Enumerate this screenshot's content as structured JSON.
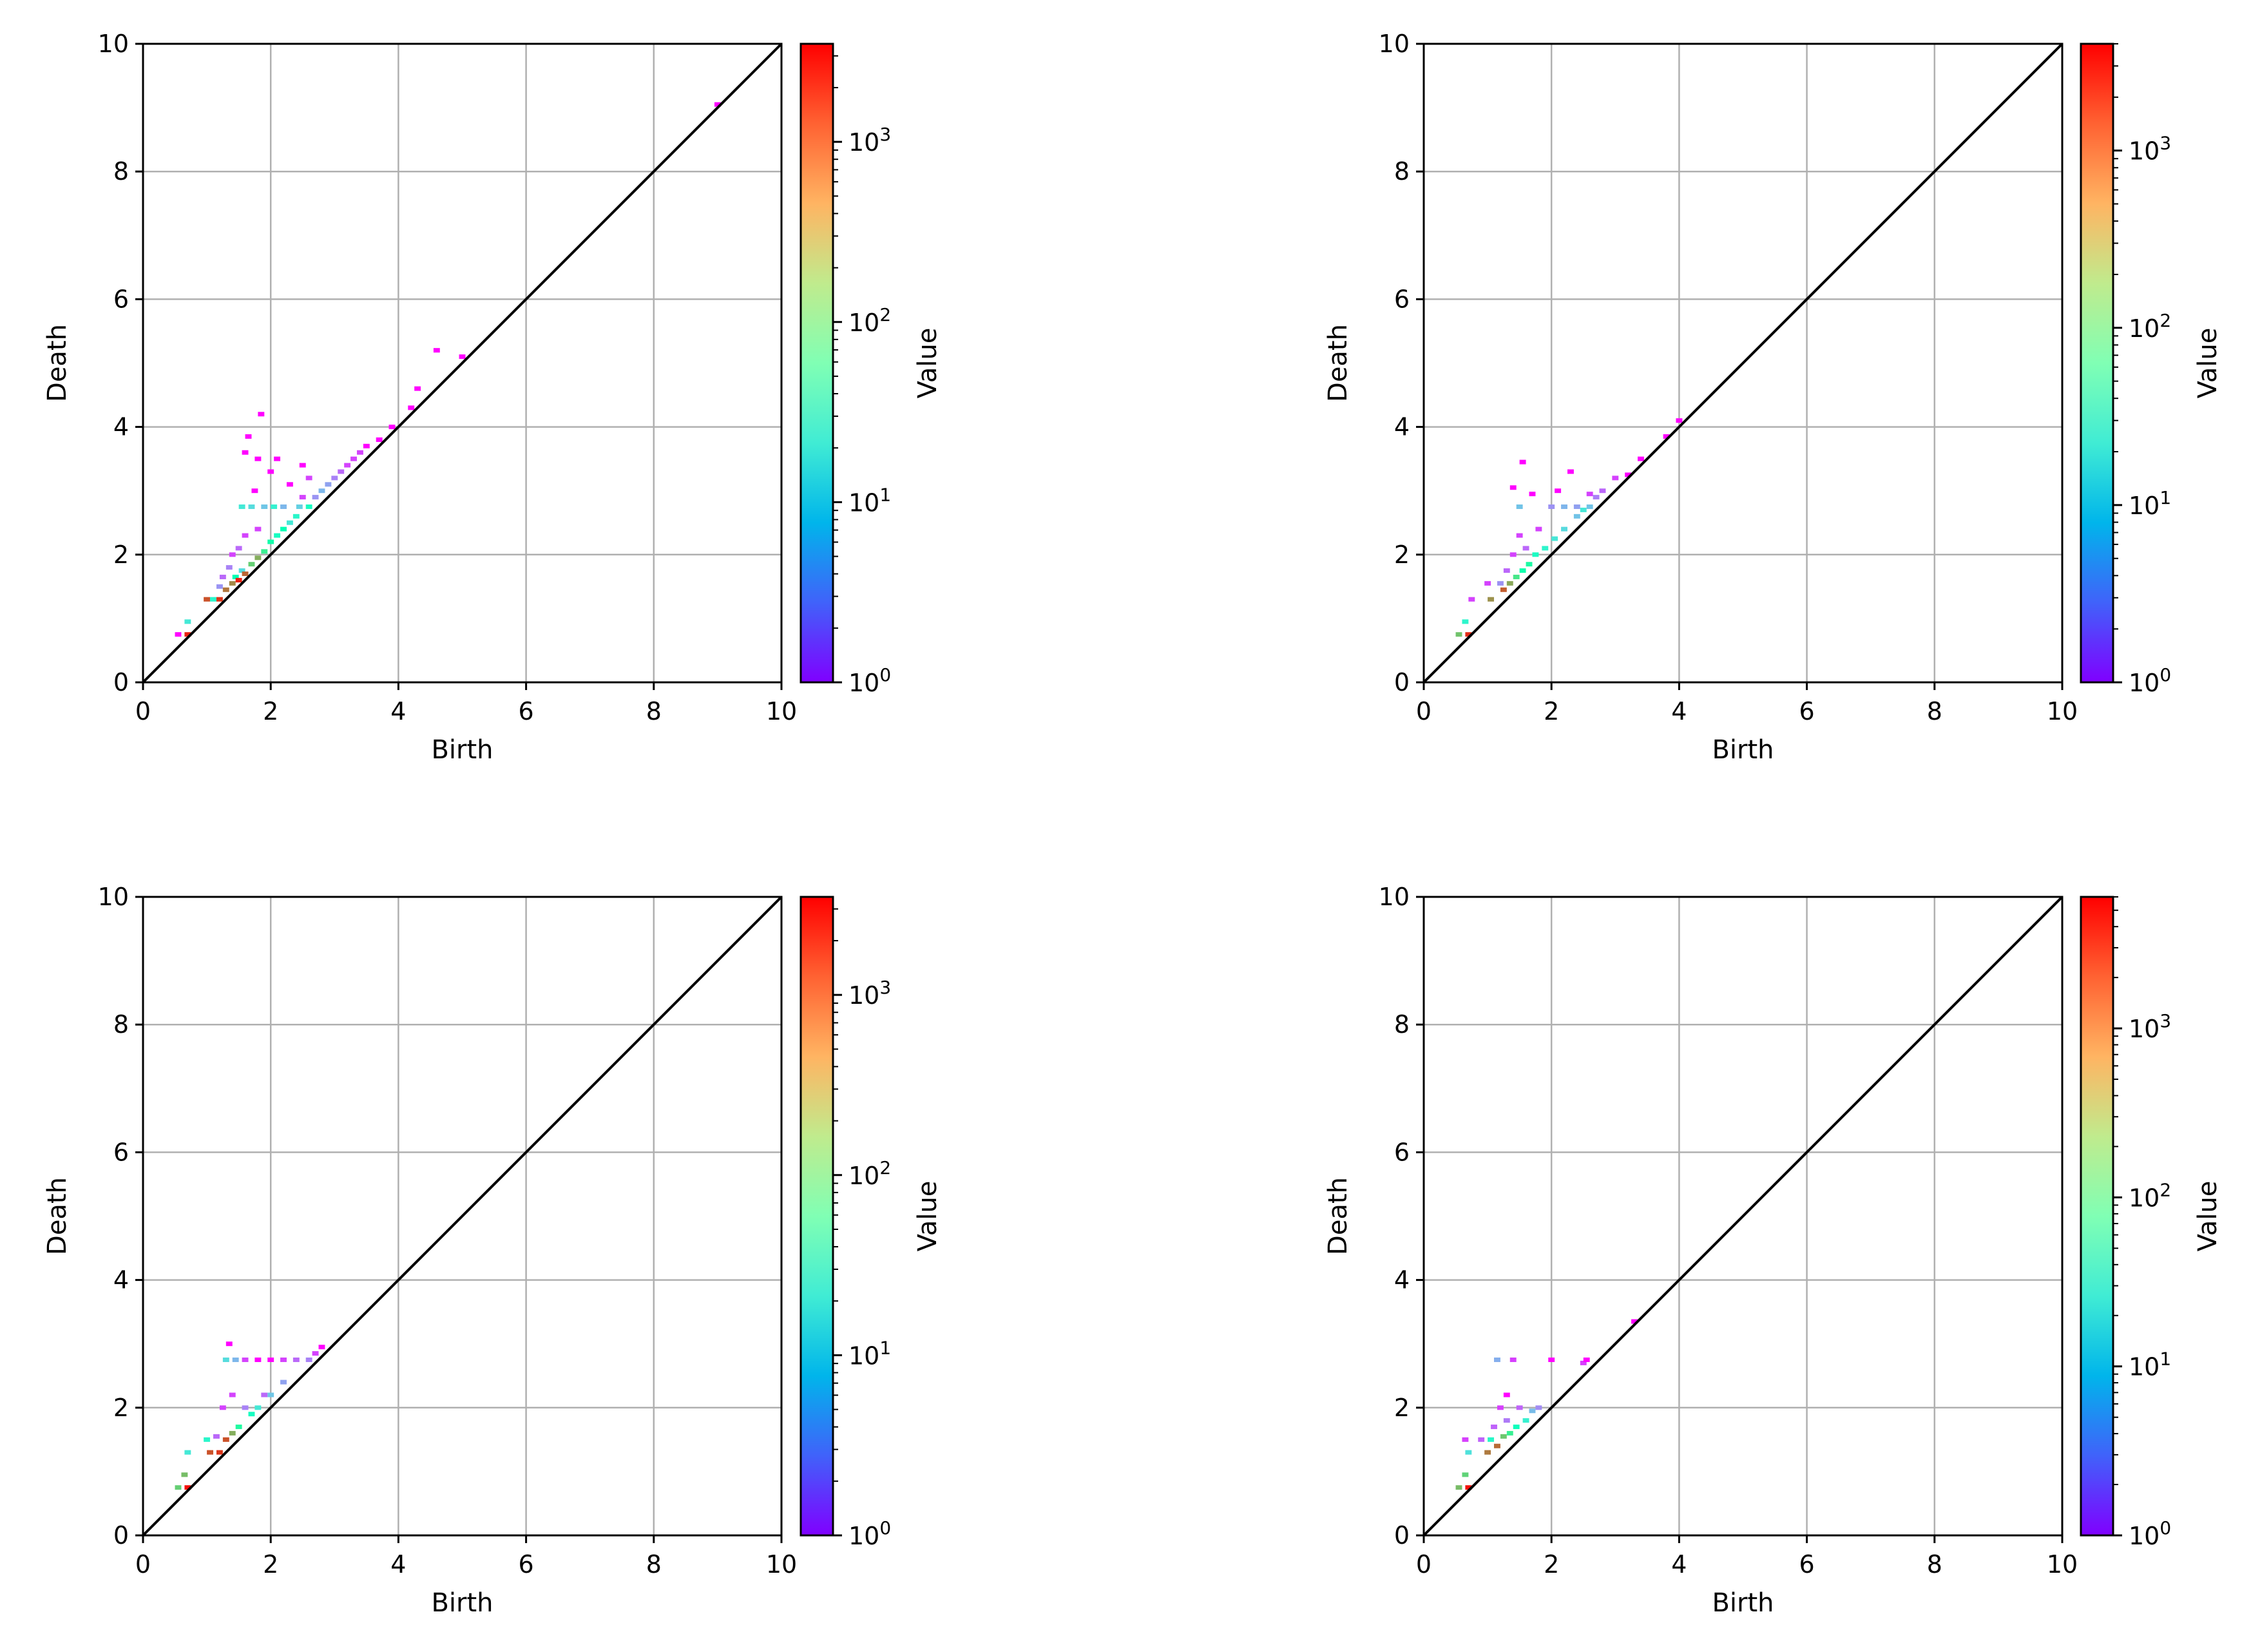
{
  "chart_data": [
    {
      "type": "heatmap",
      "xlabel": "Birth",
      "ylabel": "Death",
      "xlim": [
        0,
        10
      ],
      "ylim": [
        0,
        10
      ],
      "xticks": [
        "0",
        "2",
        "4",
        "6",
        "8",
        "10"
      ],
      "yticks": [
        "0",
        "2",
        "4",
        "6",
        "8",
        "10"
      ],
      "grid": true,
      "diagonal": true,
      "colorbar": {
        "label": "Value",
        "scale": "log",
        "range": [
          1,
          3500
        ],
        "colormap": "rainbow",
        "ticks": [
          {
            "base": "10",
            "exp": "0"
          },
          {
            "base": "10",
            "exp": "1"
          },
          {
            "base": "10",
            "exp": "2"
          },
          {
            "base": "10",
            "exp": "3"
          }
        ]
      },
      "cells": [
        {
          "x": 0.55,
          "y": 0.75,
          "v": 1
        },
        {
          "x": 0.7,
          "y": 0.75,
          "v": 2500
        },
        {
          "x": 0.7,
          "y": 0.95,
          "v": 20
        },
        {
          "x": 1.0,
          "y": 1.3,
          "v": 1500
        },
        {
          "x": 1.1,
          "y": 1.3,
          "v": 30
        },
        {
          "x": 1.2,
          "y": 1.3,
          "v": 2000
        },
        {
          "x": 1.2,
          "y": 1.5,
          "v": 5
        },
        {
          "x": 1.25,
          "y": 1.65,
          "v": 3
        },
        {
          "x": 1.3,
          "y": 1.45,
          "v": 1000
        },
        {
          "x": 1.35,
          "y": 1.8,
          "v": 4
        },
        {
          "x": 1.4,
          "y": 1.55,
          "v": 800
        },
        {
          "x": 1.4,
          "y": 2.0,
          "v": 2
        },
        {
          "x": 1.45,
          "y": 1.65,
          "v": 60
        },
        {
          "x": 1.5,
          "y": 1.6,
          "v": 2500
        },
        {
          "x": 1.5,
          "y": 2.1,
          "v": 3
        },
        {
          "x": 1.55,
          "y": 1.75,
          "v": 15
        },
        {
          "x": 1.55,
          "y": 2.75,
          "v": 20
        },
        {
          "x": 1.6,
          "y": 1.7,
          "v": 1200
        },
        {
          "x": 1.6,
          "y": 2.3,
          "v": 2
        },
        {
          "x": 1.6,
          "y": 3.6,
          "v": 1
        },
        {
          "x": 1.65,
          "y": 3.85,
          "v": 1
        },
        {
          "x": 1.7,
          "y": 1.85,
          "v": 300
        },
        {
          "x": 1.7,
          "y": 2.75,
          "v": 15
        },
        {
          "x": 1.75,
          "y": 3.0,
          "v": 1
        },
        {
          "x": 1.8,
          "y": 1.95,
          "v": 500
        },
        {
          "x": 1.8,
          "y": 2.4,
          "v": 2
        },
        {
          "x": 1.8,
          "y": 3.5,
          "v": 1
        },
        {
          "x": 1.85,
          "y": 4.2,
          "v": 1
        },
        {
          "x": 1.9,
          "y": 2.05,
          "v": 150
        },
        {
          "x": 1.9,
          "y": 2.75,
          "v": 10
        },
        {
          "x": 2.0,
          "y": 2.2,
          "v": 80
        },
        {
          "x": 2.0,
          "y": 3.3,
          "v": 1
        },
        {
          "x": 2.05,
          "y": 2.75,
          "v": 25
        },
        {
          "x": 2.1,
          "y": 2.3,
          "v": 40
        },
        {
          "x": 2.1,
          "y": 3.5,
          "v": 1
        },
        {
          "x": 2.2,
          "y": 2.4,
          "v": 60
        },
        {
          "x": 2.2,
          "y": 2.75,
          "v": 8
        },
        {
          "x": 2.3,
          "y": 2.5,
          "v": 20
        },
        {
          "x": 2.3,
          "y": 3.1,
          "v": 1
        },
        {
          "x": 2.4,
          "y": 2.6,
          "v": 30
        },
        {
          "x": 2.45,
          "y": 2.75,
          "v": 12
        },
        {
          "x": 2.5,
          "y": 2.9,
          "v": 2
        },
        {
          "x": 2.5,
          "y": 3.4,
          "v": 1
        },
        {
          "x": 2.6,
          "y": 2.75,
          "v": 40
        },
        {
          "x": 2.6,
          "y": 3.2,
          "v": 2
        },
        {
          "x": 2.7,
          "y": 2.9,
          "v": 5
        },
        {
          "x": 2.8,
          "y": 3.0,
          "v": 8
        },
        {
          "x": 2.9,
          "y": 3.1,
          "v": 6
        },
        {
          "x": 3.0,
          "y": 3.2,
          "v": 4
        },
        {
          "x": 3.1,
          "y": 3.3,
          "v": 3
        },
        {
          "x": 3.2,
          "y": 3.4,
          "v": 2
        },
        {
          "x": 3.3,
          "y": 3.5,
          "v": 2
        },
        {
          "x": 3.4,
          "y": 3.6,
          "v": 2
        },
        {
          "x": 3.5,
          "y": 3.7,
          "v": 1
        },
        {
          "x": 3.7,
          "y": 3.8,
          "v": 1
        },
        {
          "x": 3.9,
          "y": 4.0,
          "v": 1
        },
        {
          "x": 4.2,
          "y": 4.3,
          "v": 1
        },
        {
          "x": 4.3,
          "y": 4.6,
          "v": 1
        },
        {
          "x": 4.6,
          "y": 5.2,
          "v": 1
        },
        {
          "x": 5.0,
          "y": 5.1,
          "v": 1
        },
        {
          "x": 9.0,
          "y": 9.05,
          "v": 1
        }
      ]
    },
    {
      "type": "heatmap",
      "xlabel": "Birth",
      "ylabel": "Death",
      "xlim": [
        0,
        10
      ],
      "ylim": [
        0,
        10
      ],
      "xticks": [
        "0",
        "2",
        "4",
        "6",
        "8",
        "10"
      ],
      "yticks": [
        "0",
        "2",
        "4",
        "6",
        "8",
        "10"
      ],
      "grid": true,
      "diagonal": true,
      "colorbar": {
        "label": "Value",
        "scale": "log",
        "range": [
          1,
          4000
        ],
        "colormap": "rainbow",
        "ticks": [
          {
            "base": "10",
            "exp": "0"
          },
          {
            "base": "10",
            "exp": "1"
          },
          {
            "base": "10",
            "exp": "2"
          },
          {
            "base": "10",
            "exp": "3"
          }
        ]
      },
      "cells": [
        {
          "x": 0.55,
          "y": 0.75,
          "v": 400
        },
        {
          "x": 0.65,
          "y": 0.95,
          "v": 30
        },
        {
          "x": 0.7,
          "y": 0.75,
          "v": 2500
        },
        {
          "x": 0.75,
          "y": 1.3,
          "v": 2
        },
        {
          "x": 1.0,
          "y": 1.55,
          "v": 2
        },
        {
          "x": 1.05,
          "y": 1.3,
          "v": 800
        },
        {
          "x": 1.2,
          "y": 1.55,
          "v": 5
        },
        {
          "x": 1.25,
          "y": 1.45,
          "v": 1500
        },
        {
          "x": 1.3,
          "y": 1.75,
          "v": 3
        },
        {
          "x": 1.35,
          "y": 1.55,
          "v": 600
        },
        {
          "x": 1.4,
          "y": 2.0,
          "v": 2
        },
        {
          "x": 1.4,
          "y": 3.05,
          "v": 1
        },
        {
          "x": 1.45,
          "y": 1.65,
          "v": 200
        },
        {
          "x": 1.5,
          "y": 2.3,
          "v": 2
        },
        {
          "x": 1.5,
          "y": 2.75,
          "v": 10
        },
        {
          "x": 1.55,
          "y": 1.75,
          "v": 80
        },
        {
          "x": 1.55,
          "y": 3.45,
          "v": 1
        },
        {
          "x": 1.6,
          "y": 2.1,
          "v": 3
        },
        {
          "x": 1.65,
          "y": 1.85,
          "v": 100
        },
        {
          "x": 1.7,
          "y": 2.95,
          "v": 1
        },
        {
          "x": 1.75,
          "y": 2.0,
          "v": 40
        },
        {
          "x": 1.8,
          "y": 2.4,
          "v": 2
        },
        {
          "x": 1.9,
          "y": 2.1,
          "v": 30
        },
        {
          "x": 2.0,
          "y": 2.75,
          "v": 5
        },
        {
          "x": 2.05,
          "y": 2.25,
          "v": 20
        },
        {
          "x": 2.1,
          "y": 3.0,
          "v": 1
        },
        {
          "x": 2.2,
          "y": 2.4,
          "v": 15
        },
        {
          "x": 2.2,
          "y": 2.75,
          "v": 8
        },
        {
          "x": 2.3,
          "y": 3.3,
          "v": 1
        },
        {
          "x": 2.4,
          "y": 2.6,
          "v": 10
        },
        {
          "x": 2.4,
          "y": 2.75,
          "v": 6
        },
        {
          "x": 2.5,
          "y": 2.7,
          "v": 20
        },
        {
          "x": 2.6,
          "y": 2.95,
          "v": 2
        },
        {
          "x": 2.6,
          "y": 2.75,
          "v": 10
        },
        {
          "x": 2.7,
          "y": 2.9,
          "v": 4
        },
        {
          "x": 2.8,
          "y": 3.0,
          "v": 3
        },
        {
          "x": 3.0,
          "y": 3.2,
          "v": 2
        },
        {
          "x": 3.2,
          "y": 3.25,
          "v": 1
        },
        {
          "x": 3.4,
          "y": 3.5,
          "v": 1
        },
        {
          "x": 3.8,
          "y": 3.85,
          "v": 1
        },
        {
          "x": 4.0,
          "y": 4.1,
          "v": 1
        }
      ]
    },
    {
      "type": "heatmap",
      "xlabel": "Birth",
      "ylabel": "Death",
      "xlim": [
        0,
        10
      ],
      "ylim": [
        0,
        10
      ],
      "xticks": [
        "0",
        "2",
        "4",
        "6",
        "8",
        "10"
      ],
      "yticks": [
        "0",
        "2",
        "4",
        "6",
        "8",
        "10"
      ],
      "grid": true,
      "diagonal": true,
      "colorbar": {
        "label": "Value",
        "scale": "log",
        "range": [
          1,
          3500
        ],
        "colormap": "rainbow",
        "ticks": [
          {
            "base": "10",
            "exp": "0"
          },
          {
            "base": "10",
            "exp": "1"
          },
          {
            "base": "10",
            "exp": "2"
          },
          {
            "base": "10",
            "exp": "3"
          }
        ]
      },
      "cells": [
        {
          "x": 0.55,
          "y": 0.75,
          "v": 300
        },
        {
          "x": 0.65,
          "y": 0.95,
          "v": 400
        },
        {
          "x": 0.7,
          "y": 0.75,
          "v": 3000
        },
        {
          "x": 0.7,
          "y": 1.3,
          "v": 20
        },
        {
          "x": 1.0,
          "y": 1.5,
          "v": 30
        },
        {
          "x": 1.05,
          "y": 1.3,
          "v": 1500
        },
        {
          "x": 1.15,
          "y": 1.55,
          "v": 3
        },
        {
          "x": 1.2,
          "y": 1.3,
          "v": 2000
        },
        {
          "x": 1.25,
          "y": 2.0,
          "v": 2
        },
        {
          "x": 1.3,
          "y": 1.5,
          "v": 1500
        },
        {
          "x": 1.3,
          "y": 2.75,
          "v": 15
        },
        {
          "x": 1.35,
          "y": 3.0,
          "v": 1
        },
        {
          "x": 1.4,
          "y": 1.6,
          "v": 500
        },
        {
          "x": 1.4,
          "y": 2.2,
          "v": 2
        },
        {
          "x": 1.45,
          "y": 2.75,
          "v": 8
        },
        {
          "x": 1.5,
          "y": 1.7,
          "v": 100
        },
        {
          "x": 1.6,
          "y": 2.0,
          "v": 4
        },
        {
          "x": 1.6,
          "y": 2.75,
          "v": 2
        },
        {
          "x": 1.7,
          "y": 1.9,
          "v": 40
        },
        {
          "x": 1.8,
          "y": 2.0,
          "v": 20
        },
        {
          "x": 1.8,
          "y": 2.75,
          "v": 1
        },
        {
          "x": 1.9,
          "y": 2.2,
          "v": 3
        },
        {
          "x": 2.0,
          "y": 2.2,
          "v": 10
        },
        {
          "x": 2.0,
          "y": 2.75,
          "v": 1
        },
        {
          "x": 2.2,
          "y": 2.4,
          "v": 6
        },
        {
          "x": 2.2,
          "y": 2.75,
          "v": 2
        },
        {
          "x": 2.4,
          "y": 2.75,
          "v": 3
        },
        {
          "x": 2.6,
          "y": 2.75,
          "v": 4
        },
        {
          "x": 2.7,
          "y": 2.85,
          "v": 2
        },
        {
          "x": 2.8,
          "y": 2.95,
          "v": 1
        }
      ]
    },
    {
      "type": "heatmap",
      "xlabel": "Birth",
      "ylabel": "Death",
      "xlim": [
        0,
        10
      ],
      "ylim": [
        0,
        10
      ],
      "xticks": [
        "0",
        "2",
        "4",
        "6",
        "8",
        "10"
      ],
      "yticks": [
        "0",
        "2",
        "4",
        "6",
        "8",
        "10"
      ],
      "grid": true,
      "diagonal": true,
      "colorbar": {
        "label": "Value",
        "scale": "log",
        "range": [
          1,
          6000
        ],
        "colormap": "rainbow",
        "ticks": [
          {
            "base": "10",
            "exp": "0"
          },
          {
            "base": "10",
            "exp": "1"
          },
          {
            "base": "10",
            "exp": "2"
          },
          {
            "base": "10",
            "exp": "3"
          }
        ]
      },
      "cells": [
        {
          "x": 0.55,
          "y": 0.75,
          "v": 600
        },
        {
          "x": 0.65,
          "y": 0.95,
          "v": 400
        },
        {
          "x": 0.7,
          "y": 0.75,
          "v": 5000
        },
        {
          "x": 0.65,
          "y": 1.5,
          "v": 2
        },
        {
          "x": 0.7,
          "y": 1.3,
          "v": 20
        },
        {
          "x": 0.9,
          "y": 1.5,
          "v": 3
        },
        {
          "x": 1.0,
          "y": 1.3,
          "v": 1500
        },
        {
          "x": 1.05,
          "y": 1.5,
          "v": 40
        },
        {
          "x": 1.1,
          "y": 1.7,
          "v": 3
        },
        {
          "x": 1.15,
          "y": 1.4,
          "v": 1800
        },
        {
          "x": 1.15,
          "y": 2.75,
          "v": 8
        },
        {
          "x": 1.2,
          "y": 2.0,
          "v": 2
        },
        {
          "x": 1.25,
          "y": 1.55,
          "v": 500
        },
        {
          "x": 1.3,
          "y": 1.8,
          "v": 4
        },
        {
          "x": 1.3,
          "y": 2.2,
          "v": 1
        },
        {
          "x": 1.35,
          "y": 1.6,
          "v": 200
        },
        {
          "x": 1.4,
          "y": 2.75,
          "v": 2
        },
        {
          "x": 1.45,
          "y": 1.7,
          "v": 60
        },
        {
          "x": 1.5,
          "y": 2.0,
          "v": 3
        },
        {
          "x": 1.6,
          "y": 1.8,
          "v": 30
        },
        {
          "x": 1.7,
          "y": 1.95,
          "v": 10
        },
        {
          "x": 1.8,
          "y": 2.0,
          "v": 5
        },
        {
          "x": 2.0,
          "y": 2.75,
          "v": 1
        },
        {
          "x": 2.5,
          "y": 2.7,
          "v": 2
        },
        {
          "x": 2.55,
          "y": 2.75,
          "v": 1
        },
        {
          "x": 3.3,
          "y": 3.35,
          "v": 1
        }
      ]
    }
  ]
}
